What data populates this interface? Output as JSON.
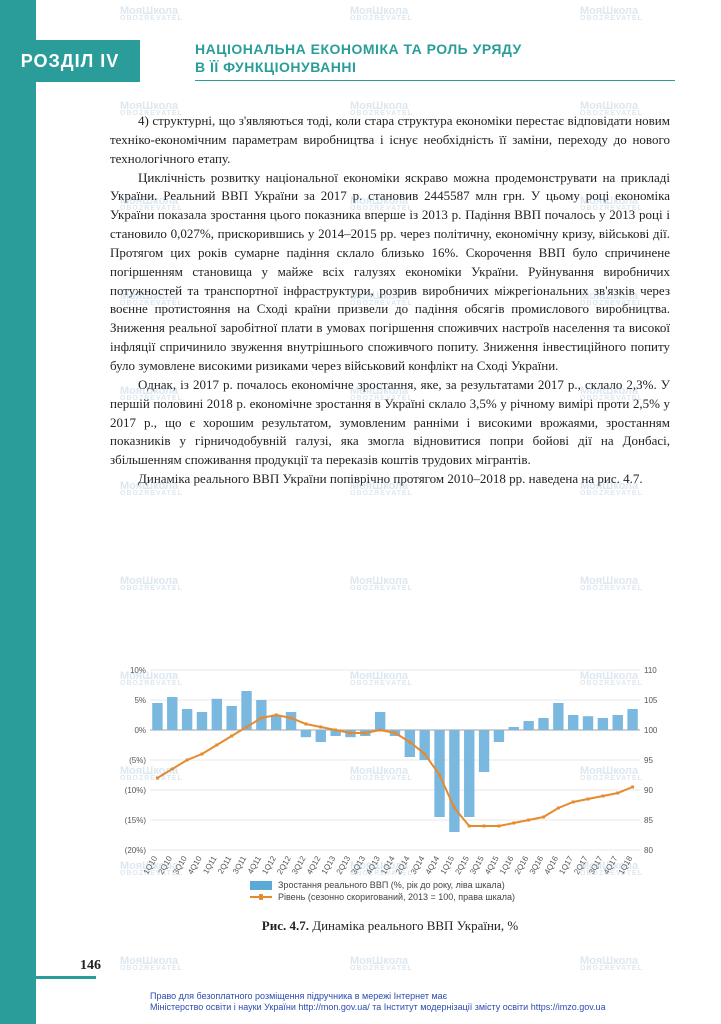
{
  "section_badge": "РОЗДІЛ IV",
  "section_title_line1": "НАЦІОНАЛЬНА ЕКОНОМІКА ТА РОЛЬ УРЯДУ",
  "section_title_line2": "В ЇЇ ФУНКЦІОНУВАННІ",
  "paragraphs": [
    "4) структурні, що з'являються тоді, коли стара структура економіки перестає відповідати новим техніко-економічним параметрам виробництва і існує необхідність її заміни, переходу до нового технологічного етапу.",
    "Циклічність розвитку національної економіки яскраво можна продемон­струвати на прикладі України. Реальний ВВП України за 2017 р. становив 2445587 млн грн. У цьому році економіка України показала зростання цього показника вперше із 2013 р. Падіння ВВП почалось у 2013 році і становило 0,027%, прискорившись у 2014–2015 рр. через політичну, економічну кризу, військові дії. Протягом цих років сумарне падіння склало близько 16%. Скорочення ВВП було спричинене погіршенням становища у майже всіх галузях економіки України. Руйнування виробничих потужностей та транспортної інфраструктури, розрив виробничих міжрегіональних зв'язків через воєнне протистояння на Сході країни призвели до падіння обсягів промислового виробництва. Зниження реальної заробітної плати в умовах погіршення споживчих настроїв населення та високої інфляції спричинило звуження внутрішнього споживчого попиту. Зниження інвестиційного попиту було зумовлене високими ризиками через військовий конфлікт на Сході України.",
    "Однак, із 2017 р. почалось економічне зростання, яке, за результатами 2017 р., склало 2,3%. У першій половині 2018 р. економічне зростання в Україні склало 3,5% у річному вимірі проти 2,5% у 2017 р., що є хорошим результатом, зумовленим ранніми і високими врожаями, зростанням показників у гірничо­добувній галузі, яка змогла відновитися попри бойові дії на Донбасі, збільшенням споживання продукції та переказів коштів трудових мігрантів.",
    "Динаміка реального ВВП України попіврічно протягом 2010–2018 рр. наведена на рис. 4.7."
  ],
  "chart": {
    "type": "bar+line",
    "x_labels": [
      "1Q10",
      "2Q10",
      "3Q10",
      "4Q10",
      "1Q11",
      "2Q11",
      "3Q11",
      "4Q11",
      "1Q12",
      "2Q12",
      "3Q12",
      "4Q12",
      "1Q13",
      "2Q13",
      "3Q13",
      "4Q13",
      "1Q14",
      "2Q14",
      "3Q14",
      "4Q14",
      "1Q15",
      "2Q15",
      "3Q15",
      "4Q15",
      "1Q16",
      "2Q16",
      "3Q16",
      "4Q16",
      "1Q17",
      "2Q17",
      "3Q17",
      "4Q17",
      "1Q18"
    ],
    "bars": [
      4.5,
      5.5,
      3.5,
      3.0,
      5.2,
      4.0,
      6.5,
      5.0,
      2.5,
      3.0,
      -1.2,
      -2.0,
      -1.0,
      -1.2,
      -1.0,
      3.0,
      -1.0,
      -4.5,
      -5.0,
      -14.5,
      -17.0,
      -14.5,
      -7.0,
      -2.0,
      0.5,
      1.5,
      2.0,
      4.5,
      2.5,
      2.3,
      2.0,
      2.5,
      3.5
    ],
    "line": [
      92,
      93.5,
      95,
      96,
      97.5,
      99,
      100.5,
      102,
      102.5,
      102,
      101,
      100.5,
      100,
      99.5,
      99.5,
      100,
      99.5,
      98,
      96,
      92.5,
      87,
      84,
      84,
      84,
      84.5,
      85,
      85.5,
      87,
      88,
      88.5,
      89,
      89.5,
      90.5
    ],
    "y_left": {
      "min": -20,
      "max": 10,
      "ticks": [
        -20,
        -15,
        -10,
        -5,
        0,
        5,
        10
      ],
      "tick_labels": [
        "(20%)",
        "(15%)",
        "(10%)",
        "(5%)",
        "0%",
        "5%",
        "10%"
      ]
    },
    "y_right": {
      "min": 80,
      "max": 110,
      "ticks": [
        80,
        85,
        90,
        95,
        100,
        105,
        110
      ]
    },
    "colors": {
      "bar": "#7ab8e0",
      "line": "#e68a2e",
      "grid": "#d0d0d0",
      "background": "#ffffff"
    }
  },
  "legend": {
    "bar_label": "Зростання реального ВВП (%, рік до року, ліва шкала)",
    "line_label": "Рівень (сезонно скоригований, 2013 = 100, права шкала)"
  },
  "caption_bold": "Рис. 4.7.",
  "caption_rest": " Динаміка реального ВВП України, %",
  "page_number": "146",
  "footer_line1": "Право для безоплатного розміщення підручника в мережі Інтернет має",
  "footer_line2": "Міністерство освіти і науки України http://mon.gov.ua/ та Інститут модернізації змісту освіти https://imzo.gov.ua",
  "watermark_main": "МояШкола",
  "watermark_sub": "OBOZREVATEL"
}
